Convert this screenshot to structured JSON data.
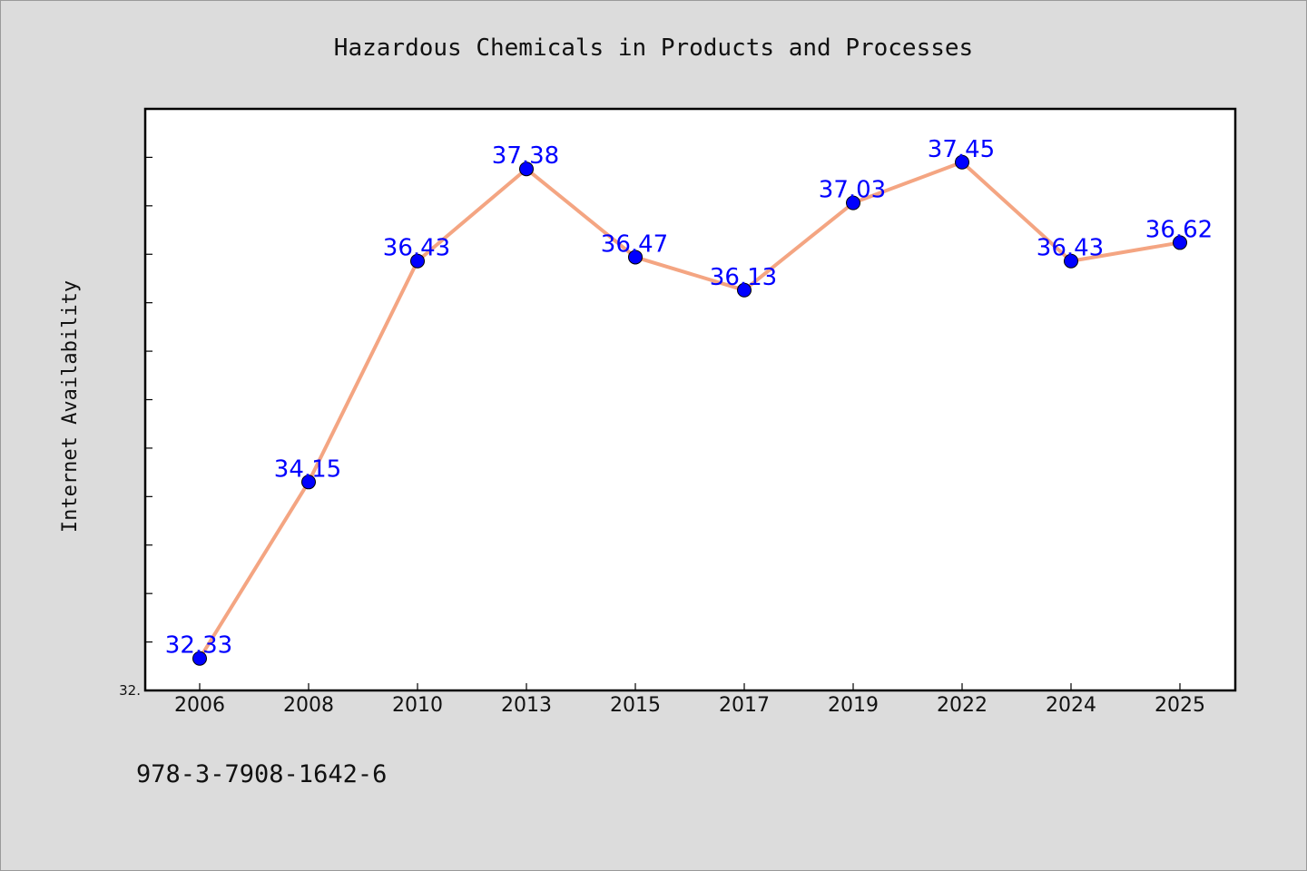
{
  "chart_data": {
    "type": "line",
    "title": "Hazardous Chemicals in Products and Processes",
    "xlabel": "",
    "ylabel": "Internet Availability",
    "categories": [
      "2006",
      "2008",
      "2010",
      "2013",
      "2015",
      "2017",
      "2019",
      "2022",
      "2024",
      "2025"
    ],
    "series": [
      {
        "values": [
          32.33,
          34.15,
          36.43,
          37.38,
          36.47,
          36.13,
          37.03,
          37.45,
          36.43,
          36.62
        ],
        "data_labels": [
          "32.33",
          "34.15",
          "36.43",
          "37.38",
          "36.47",
          "36.13",
          "37.03",
          "37.45",
          "36.43",
          "36.62"
        ]
      }
    ],
    "ylim": [
      32.0,
      38.0
    ],
    "y_tick_labels": [
      "32."
    ],
    "grid": false,
    "colors": {
      "line": "#f4a582",
      "marker": "#0000ff",
      "data_label": "#0000ff",
      "background": "#dcdcdc",
      "plot_background": "#ffffff"
    }
  },
  "footer": {
    "text": "978-3-7908-1642-6"
  }
}
